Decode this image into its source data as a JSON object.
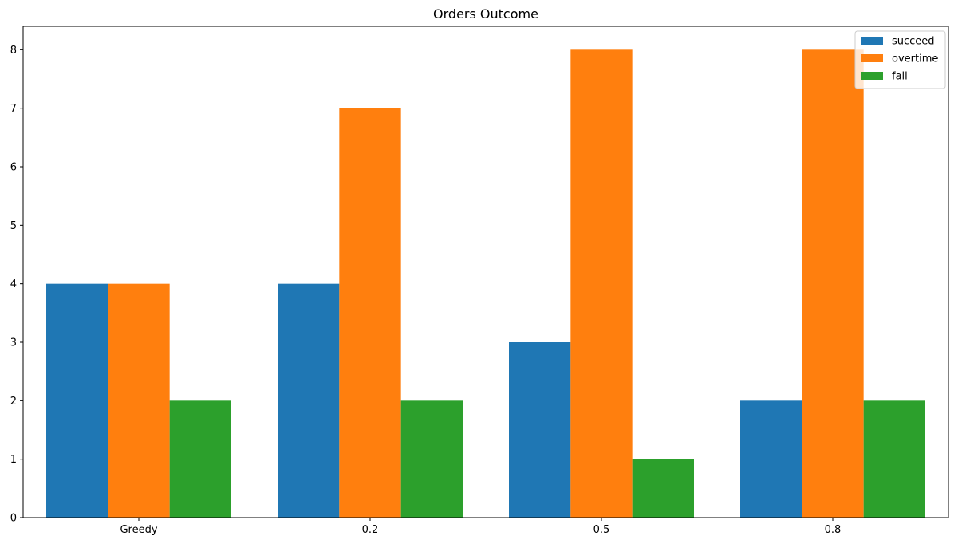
{
  "chart_data": {
    "type": "bar",
    "title": "Orders Outcome",
    "xlabel": "",
    "ylabel": "",
    "categories": [
      "Greedy",
      "0.2",
      "0.5",
      "0.8"
    ],
    "series": [
      {
        "name": "succeed",
        "values": [
          4,
          4,
          3,
          2
        ],
        "color": "#1f77b4"
      },
      {
        "name": "overtime",
        "values": [
          4,
          7,
          8,
          8
        ],
        "color": "#ff7f0e"
      },
      {
        "name": "fail",
        "values": [
          2,
          2,
          1,
          2
        ],
        "color": "#2ca02c"
      }
    ],
    "ylim": [
      0,
      8.4
    ],
    "yticks": [
      0,
      1,
      2,
      3,
      4,
      5,
      6,
      7,
      8
    ],
    "grid": false,
    "legend": "top-right"
  }
}
